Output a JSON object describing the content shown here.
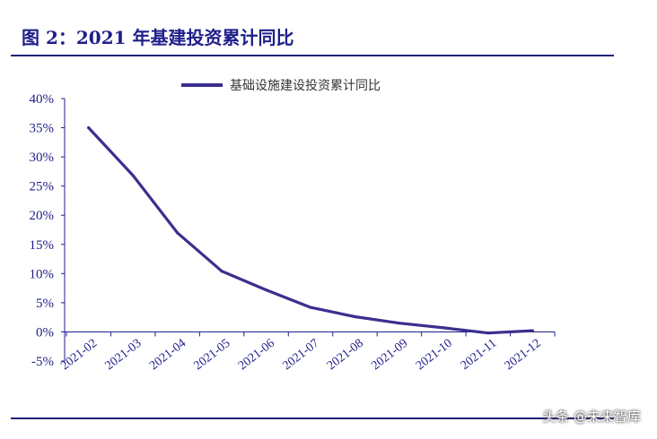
{
  "figure": {
    "title": "图 2：2021 年基建投资累计同比"
  },
  "watermark": "头条 @未来智库",
  "colors": {
    "line": "#3b2f8f",
    "text": "#1f1f8a"
  },
  "chart_data": {
    "type": "line",
    "title": "",
    "xlabel": "",
    "ylabel": "",
    "categories": [
      "2021-02",
      "2021-03",
      "2021-04",
      "2021-05",
      "2021-06",
      "2021-07",
      "2021-08",
      "2021-09",
      "2021-10",
      "2021-11",
      "2021-12"
    ],
    "series": [
      {
        "name": "基础设施建设投资累计同比",
        "values": [
          35.0,
          26.8,
          17.0,
          10.4,
          7.2,
          4.2,
          2.6,
          1.5,
          0.7,
          -0.2,
          0.2
        ]
      }
    ],
    "ylim": [
      -5,
      40
    ],
    "yticks": [
      -5,
      0,
      5,
      10,
      15,
      20,
      25,
      30,
      35,
      40
    ],
    "ytick_labels": [
      "-5%",
      "0%",
      "5%",
      "10%",
      "15%",
      "20%",
      "25%",
      "30%",
      "35%",
      "40%"
    ],
    "grid": false,
    "legend_position": "top"
  }
}
